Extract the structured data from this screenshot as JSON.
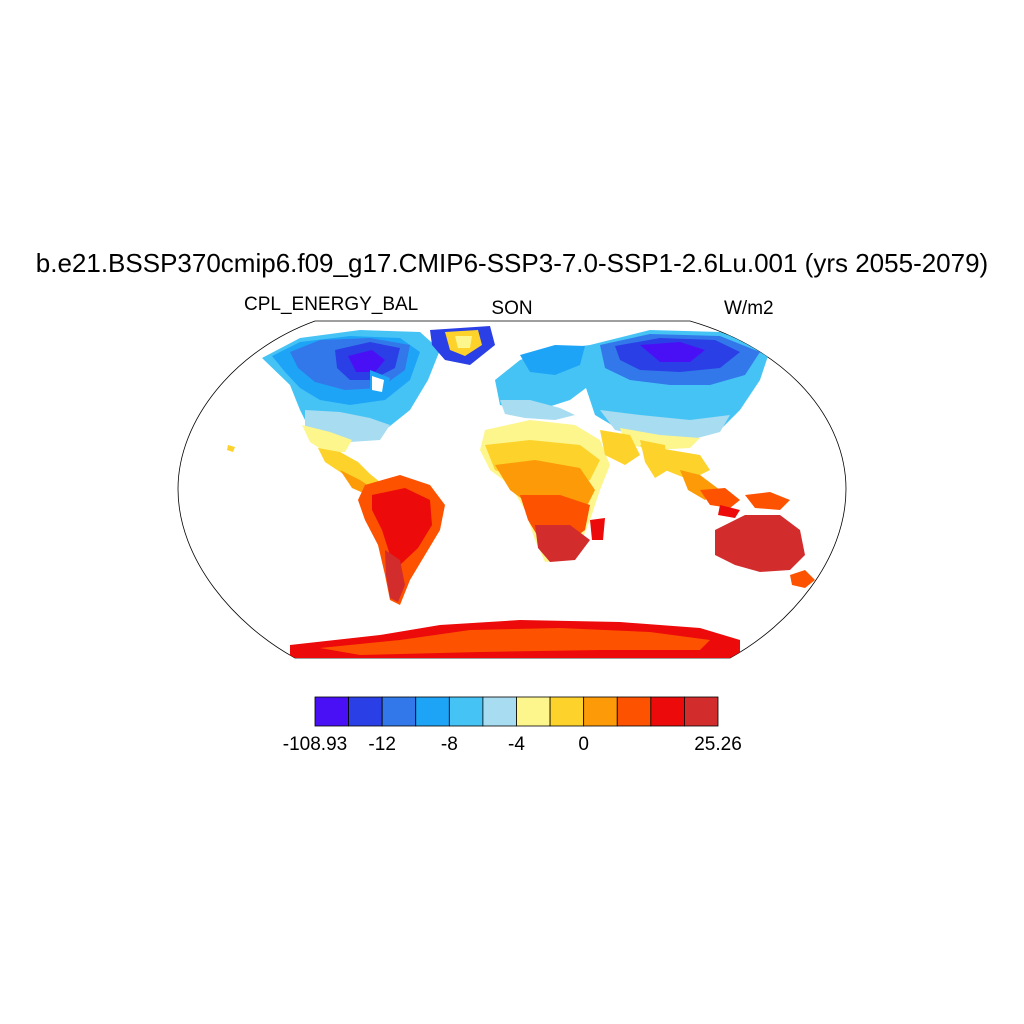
{
  "title": "b.e21.BSSP370cmip6.f09_g17.CMIP6-SSP3-7.0-SSP1-2.6Lu.001 (yrs 2055-2079)",
  "left_label": "CPL_ENERGY_BAL",
  "center_label": "SON",
  "right_label": "W/m2",
  "colorbar": {
    "colors": [
      "#4a10f5",
      "#2a3fe6",
      "#3378ea",
      "#1ea4f7",
      "#46c3f5",
      "#a8dcf0",
      "#fdf68d",
      "#fdd22b",
      "#fd9a08",
      "#fd5200",
      "#ec0a0a",
      "#d22c2c"
    ],
    "labels": [
      {
        "text": "-108.93",
        "boundary": 0
      },
      {
        "text": "-12",
        "boundary": 2
      },
      {
        "text": "-8",
        "boundary": 4
      },
      {
        "text": "-4",
        "boundary": 6
      },
      {
        "text": "0",
        "boundary": 8
      },
      {
        "text": "25.26",
        "boundary": 12
      }
    ]
  }
}
